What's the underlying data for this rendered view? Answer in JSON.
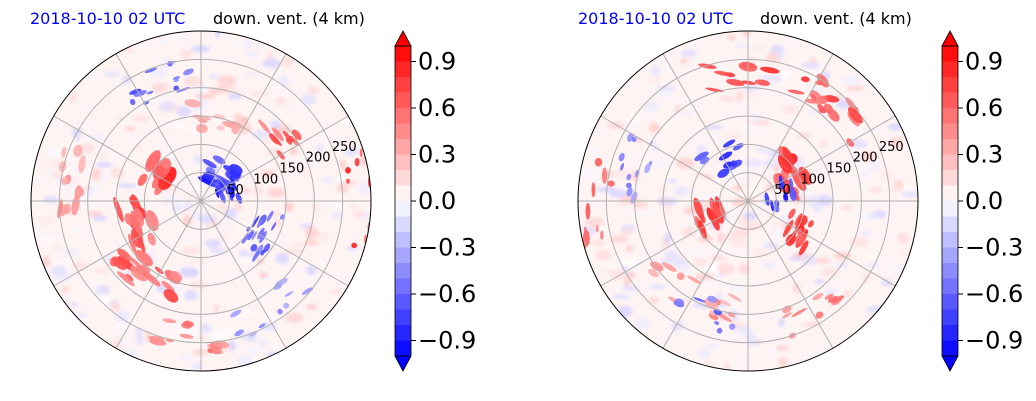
{
  "chart_data": [
    {
      "type": "heatmap",
      "projection": "polar",
      "title_left": "2018-10-10 02 UTC",
      "title_right": "down. vent. (4 km)",
      "title_left_color": "#0000ff",
      "radial_ticks": [
        "50",
        "100",
        "150",
        "200",
        "250"
      ],
      "radial_values": [
        50,
        100,
        150,
        200,
        250
      ],
      "radius_max": 300,
      "colorbar": {
        "ticks": [
          "0.9",
          "0.6",
          "0.3",
          "0.0",
          "−0.3",
          "−0.6",
          "−0.9"
        ],
        "tick_values": [
          0.9,
          0.6,
          0.3,
          0.0,
          -0.3,
          -0.6,
          -0.9
        ],
        "vmin": -1.0,
        "vmax": 1.0,
        "cmap": "bwr",
        "extend": "both"
      }
    },
    {
      "type": "heatmap",
      "projection": "polar",
      "title_left": "2018-10-10 02 UTC",
      "title_right": "down. vent. (4 km)",
      "title_left_color": "#0000ff",
      "radial_ticks": [
        "50",
        "100",
        "150",
        "200",
        "250"
      ],
      "radial_values": [
        50,
        100,
        150,
        200,
        250
      ],
      "radius_max": 300,
      "colorbar": {
        "ticks": [
          "0.9",
          "0.6",
          "0.3",
          "0.0",
          "−0.3",
          "−0.6",
          "−0.9"
        ],
        "tick_values": [
          0.9,
          0.6,
          0.3,
          0.0,
          -0.3,
          -0.6,
          -0.9
        ],
        "vmin": -1.0,
        "vmax": 1.0,
        "cmap": "bwr",
        "extend": "both"
      }
    }
  ]
}
